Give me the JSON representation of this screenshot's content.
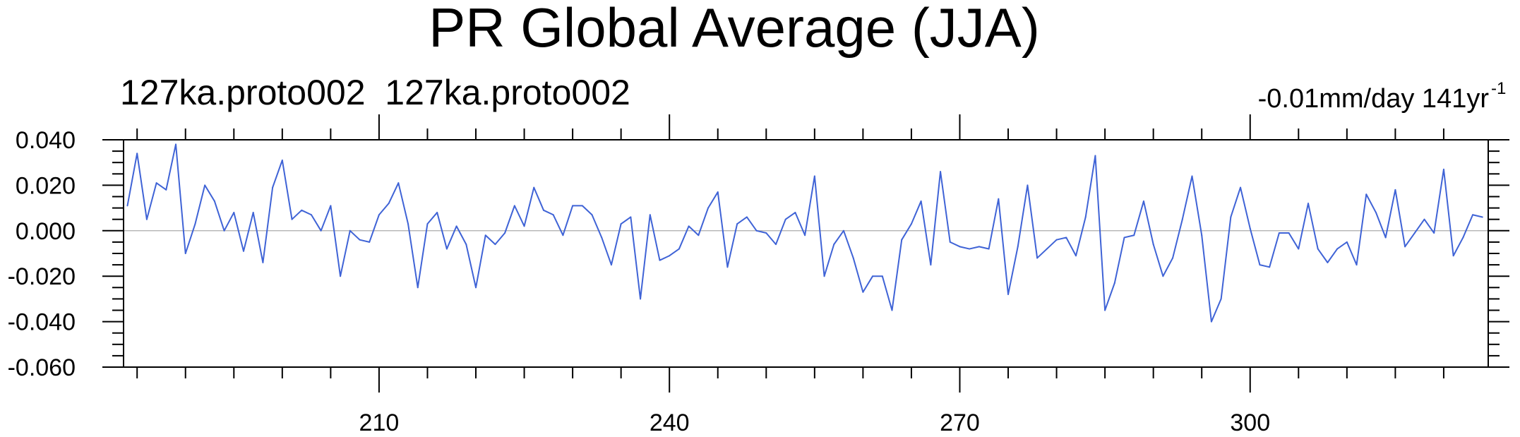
{
  "chart_data": {
    "type": "line",
    "title": "PR Global Average (JJA)",
    "left_string": "127ka.proto002  127ka.proto002",
    "right_string": "-0.01mm/day 141yr",
    "right_string_superscript": "-1",
    "xlabel": "",
    "ylabel": "",
    "xlim": [
      183.6,
      324.6
    ],
    "ylim": [
      -0.06,
      0.04
    ],
    "x_ticks": [
      210,
      240,
      270,
      300
    ],
    "x_tick_labels": [
      "210",
      "240",
      "270",
      "300"
    ],
    "y_ticks": [
      0.04,
      0.02,
      0.0,
      -0.02,
      -0.04,
      -0.06
    ],
    "y_tick_labels": [
      "0.040",
      "0.020",
      "0.000",
      "-0.020",
      "-0.040",
      "-0.060"
    ],
    "reference_line": 0.0,
    "grid": false,
    "line_color": "#3f63d6",
    "reference_color": "#b8b8b8",
    "series": [
      {
        "x_start": 184,
        "x_step": 1,
        "values": [
          0.011,
          0.034,
          0.005,
          0.021,
          0.018,
          0.038,
          -0.01,
          0.003,
          0.02,
          0.013,
          0.0,
          0.008,
          -0.009,
          0.008,
          -0.014,
          0.019,
          0.031,
          0.005,
          0.009,
          0.007,
          0.0,
          0.011,
          -0.02,
          0.0,
          -0.004,
          -0.005,
          0.007,
          0.012,
          0.021,
          0.003,
          -0.025,
          0.003,
          0.008,
          -0.008,
          0.002,
          -0.006,
          -0.025,
          -0.002,
          -0.006,
          -0.001,
          0.011,
          0.002,
          0.019,
          0.009,
          0.007,
          -0.002,
          0.011,
          0.011,
          0.007,
          -0.003,
          -0.015,
          0.003,
          0.006,
          -0.03,
          0.007,
          -0.013,
          -0.011,
          -0.008,
          0.002,
          -0.002,
          0.01,
          0.017,
          -0.016,
          0.003,
          0.006,
          0.0,
          -0.001,
          -0.006,
          0.005,
          0.008,
          -0.002,
          0.024,
          -0.02,
          -0.006,
          0.0,
          -0.012,
          -0.027,
          -0.02,
          -0.02,
          -0.035,
          -0.004,
          0.003,
          0.013,
          -0.015,
          0.026,
          -0.005,
          -0.007,
          -0.008,
          -0.007,
          -0.008,
          0.014,
          -0.028,
          -0.007,
          0.02,
          -0.012,
          -0.008,
          -0.004,
          -0.003,
          -0.011,
          0.006,
          0.033,
          -0.035,
          -0.023,
          -0.003,
          -0.002,
          0.013,
          -0.006,
          -0.02,
          -0.012,
          0.005,
          0.024,
          -0.002,
          -0.04,
          -0.03,
          0.006,
          0.019,
          0.001,
          -0.015,
          -0.016,
          -0.001,
          -0.001,
          -0.008,
          0.012,
          -0.008,
          -0.014,
          -0.008,
          -0.005,
          -0.015,
          0.016,
          0.008,
          -0.003,
          0.018,
          -0.007,
          -0.001,
          0.005,
          -0.001,
          0.027,
          -0.011,
          -0.003,
          0.007,
          0.006
        ]
      }
    ]
  }
}
